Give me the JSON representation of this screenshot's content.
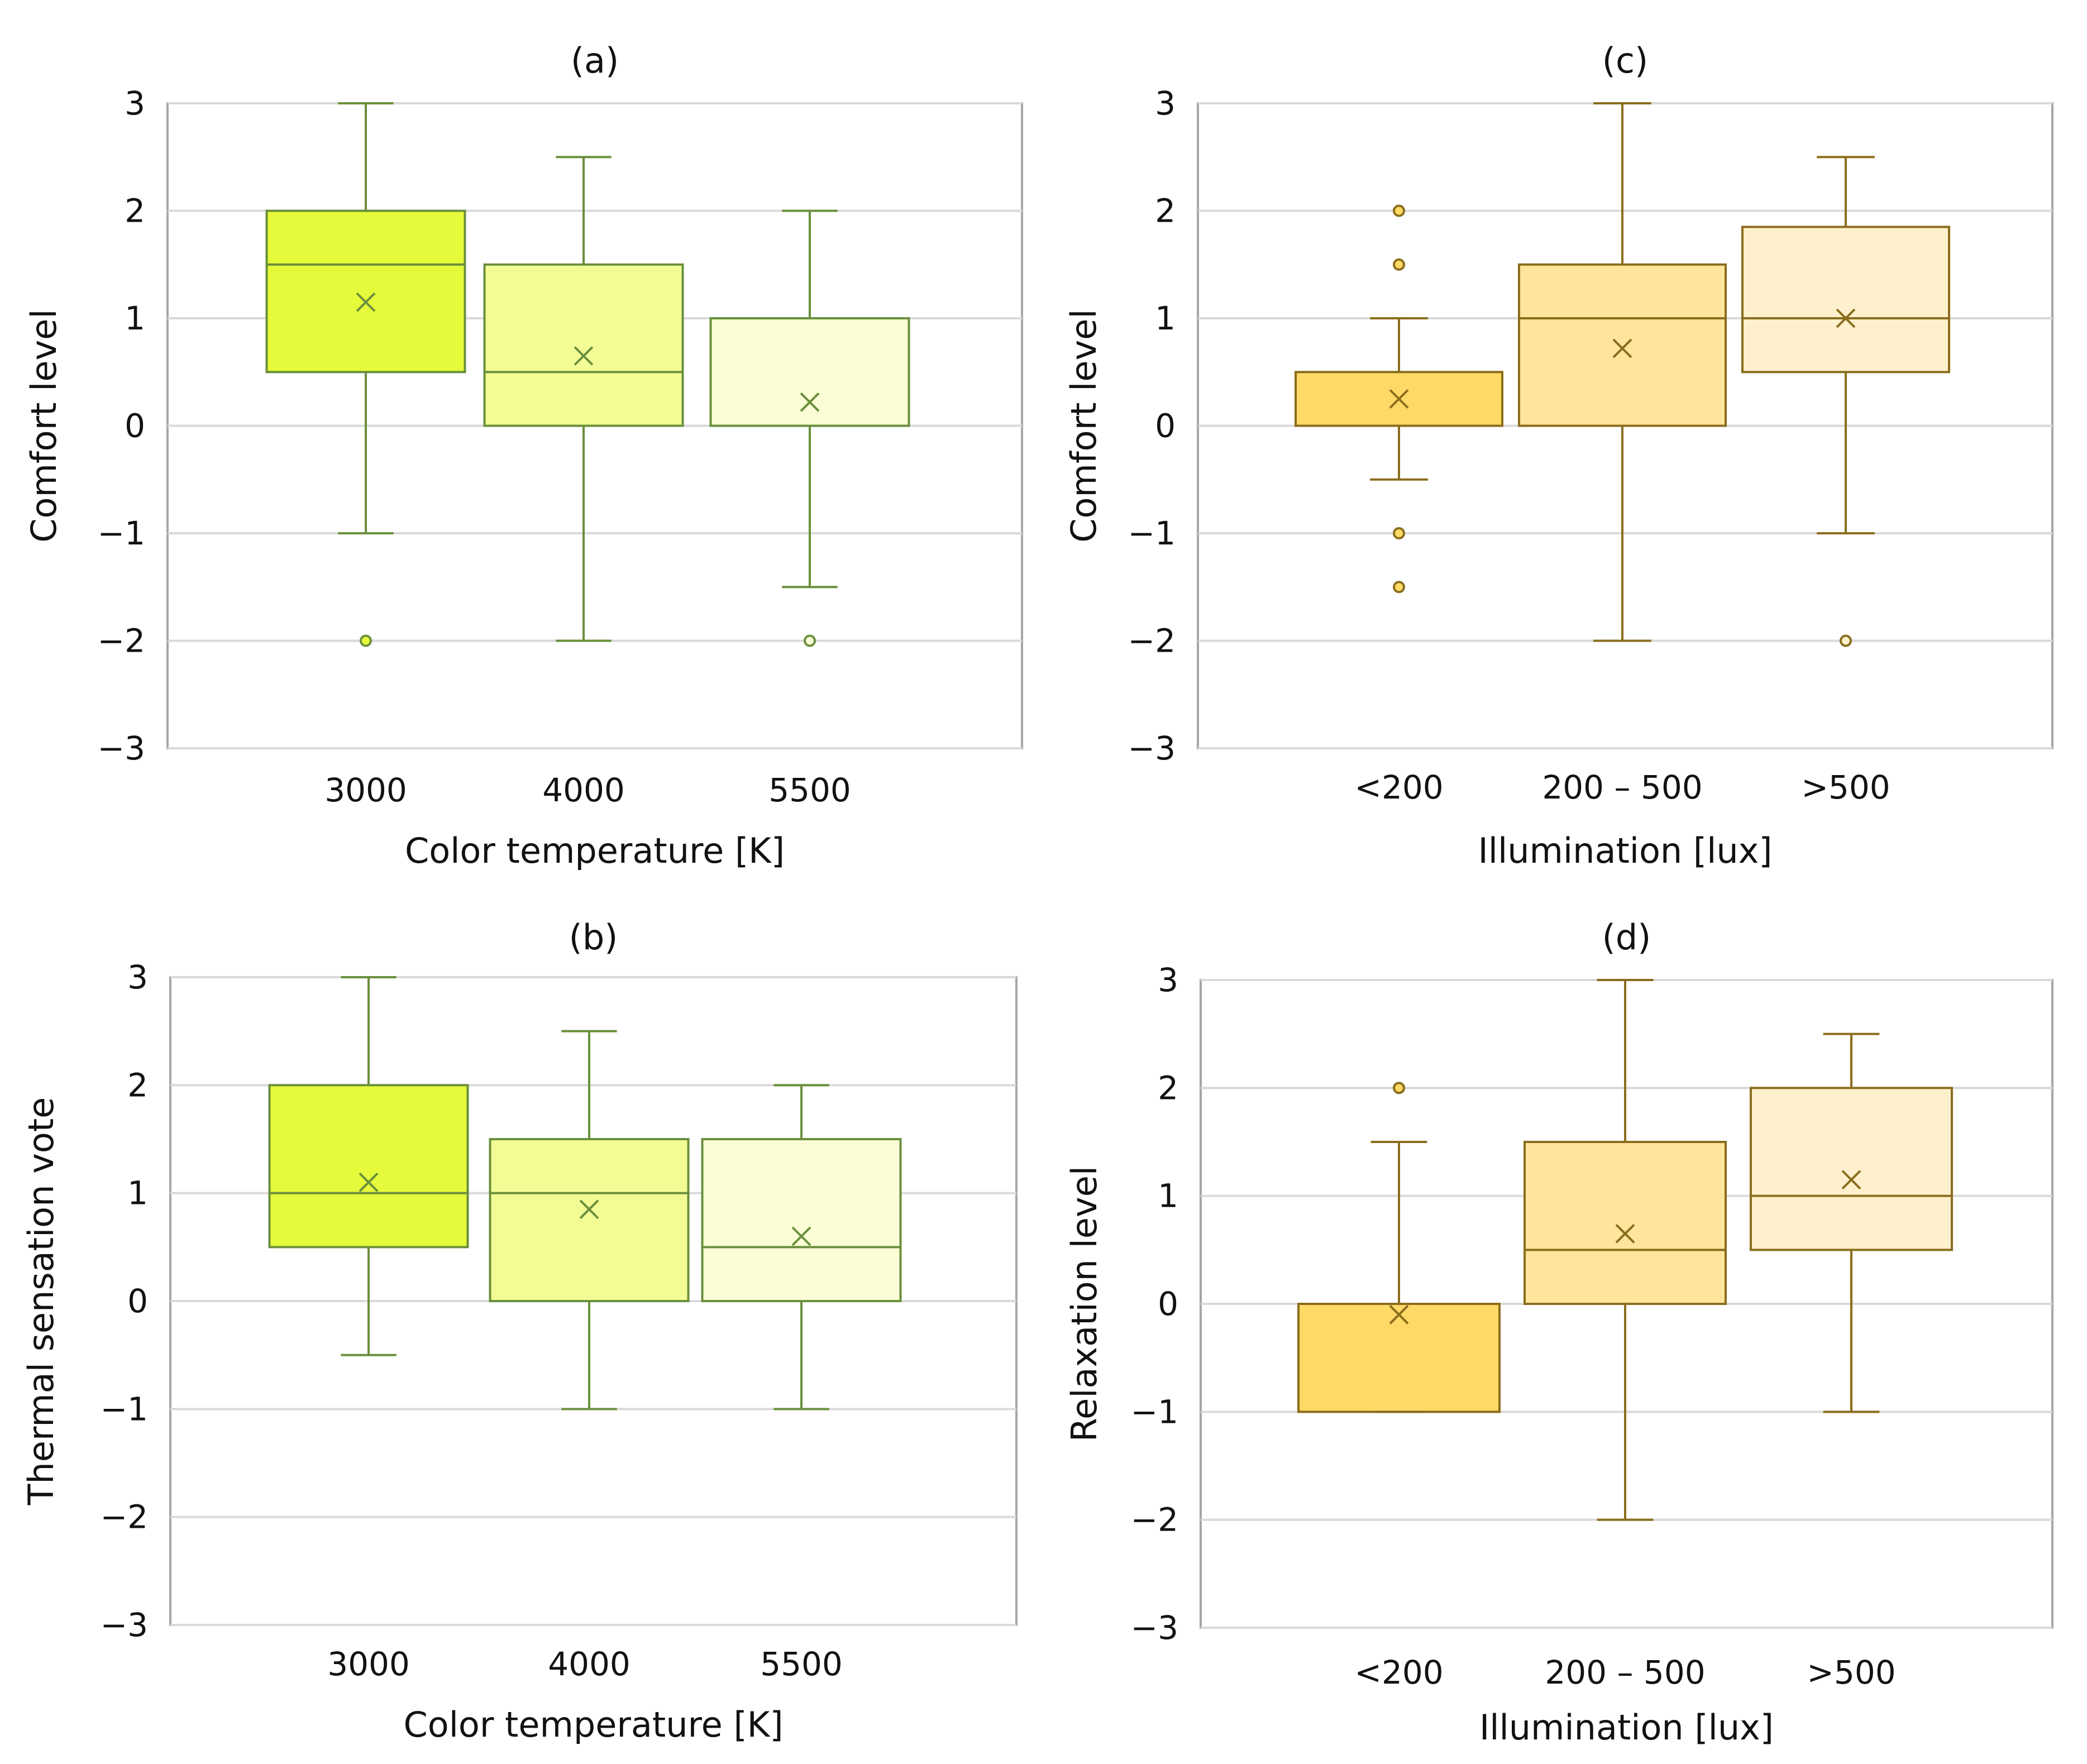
{
  "chart_data": [
    {
      "type": "box",
      "panel_label": "(a)",
      "xlabel": "Color temperature [K]",
      "ylabel": "Comfort level",
      "ylim": [
        -3,
        3
      ],
      "yticks": [
        "3",
        "2",
        "1",
        "0",
        "−1",
        "−2",
        "−3"
      ],
      "grid": "horizontal",
      "stroke_color": "#6a8f3c",
      "categories": [
        "3000",
        "4000",
        "5500"
      ],
      "boxes": [
        {
          "category": "3000",
          "min": -1,
          "q1": 0.5,
          "median": 1.5,
          "q3": 2,
          "max": 3,
          "mean": 1.15,
          "outliers": [
            -2
          ],
          "color": "#e5fa3a"
        },
        {
          "category": "4000",
          "min": -2,
          "q1": 0,
          "median": 0.5,
          "q3": 1.5,
          "max": 2.5,
          "mean": 0.65,
          "outliers": [],
          "color": "#f3fc94"
        },
        {
          "category": "5500",
          "min": -1.5,
          "q1": 0,
          "median": 1,
          "q3": 1,
          "max": 2,
          "mean": 0.22,
          "outliers": [
            -2
          ],
          "color": "#fbfdd6"
        }
      ]
    },
    {
      "type": "box",
      "panel_label": "(c)",
      "xlabel": "Illumination [lux]",
      "ylabel": "Comfort level",
      "ylim": [
        -3,
        3
      ],
      "yticks": [
        "3",
        "2",
        "1",
        "0",
        "−1",
        "−2",
        "−3"
      ],
      "grid": "horizontal",
      "stroke_color": "#8a6d1c",
      "categories": [
        "<200",
        "200 – 500",
        ">500"
      ],
      "boxes": [
        {
          "category": "<200",
          "min": -0.5,
          "q1": 0,
          "median": 0,
          "q3": 0.5,
          "max": 1,
          "mean": 0.25,
          "outliers": [
            2,
            1.5,
            -1,
            -1.5
          ],
          "color": "#ffd966"
        },
        {
          "category": "200 – 500",
          "min": -2,
          "q1": 0,
          "median": 1,
          "q3": 1.5,
          "max": 3,
          "mean": 0.72,
          "outliers": [],
          "color": "#ffe49c"
        },
        {
          "category": ">500",
          "min": -1,
          "q1": 0.5,
          "median": 1,
          "q3": 1.85,
          "max": 2.5,
          "mean": 1.0,
          "outliers": [
            -2
          ],
          "color": "#fff0cd"
        }
      ]
    },
    {
      "type": "box",
      "panel_label": "(b)",
      "xlabel": "Color temperature [K]",
      "ylabel": "Thermal sensation vote",
      "ylim": [
        -3,
        3
      ],
      "yticks": [
        "3",
        "2",
        "1",
        "0",
        "−1",
        "−2",
        "−3"
      ],
      "grid": "horizontal",
      "stroke_color": "#6a8f3c",
      "categories": [
        "3000",
        "4000",
        "5500"
      ],
      "boxes": [
        {
          "category": "3000",
          "min": -0.5,
          "q1": 0.5,
          "median": 1,
          "q3": 2,
          "max": 3,
          "mean": 1.1,
          "outliers": [],
          "color": "#e5fa3a"
        },
        {
          "category": "4000",
          "min": -1,
          "q1": 0,
          "median": 1,
          "q3": 1.5,
          "max": 2.5,
          "mean": 0.85,
          "outliers": [],
          "color": "#f3fc94"
        },
        {
          "category": "5500",
          "min": -1,
          "q1": 0,
          "median": 0.5,
          "q3": 1.5,
          "max": 2,
          "mean": 0.6,
          "outliers": [],
          "color": "#fbfdd6"
        }
      ]
    },
    {
      "type": "box",
      "panel_label": "(d)",
      "xlabel": "Illumination [lux]",
      "ylabel": "Relaxation level",
      "ylim": [
        -3,
        3
      ],
      "yticks": [
        "3",
        "2",
        "1",
        "0",
        "−1",
        "−2",
        "−3"
      ],
      "grid": "horizontal",
      "stroke_color": "#8a6d1c",
      "categories": [
        "<200",
        "200 – 500",
        ">500"
      ],
      "boxes": [
        {
          "category": "<200",
          "min": -1,
          "q1": -1,
          "median": 0,
          "q3": 0,
          "max": 1.5,
          "mean": -0.1,
          "outliers": [
            2
          ],
          "color": "#ffd966"
        },
        {
          "category": "200 – 500",
          "min": -2,
          "q1": 0,
          "median": 0.5,
          "q3": 1.5,
          "max": 3,
          "mean": 0.65,
          "outliers": [],
          "color": "#ffe49c"
        },
        {
          "category": ">500",
          "min": -1,
          "q1": 0.5,
          "median": 1,
          "q3": 2,
          "max": 2.5,
          "mean": 1.15,
          "outliers": [],
          "color": "#fff0cd"
        }
      ]
    }
  ]
}
